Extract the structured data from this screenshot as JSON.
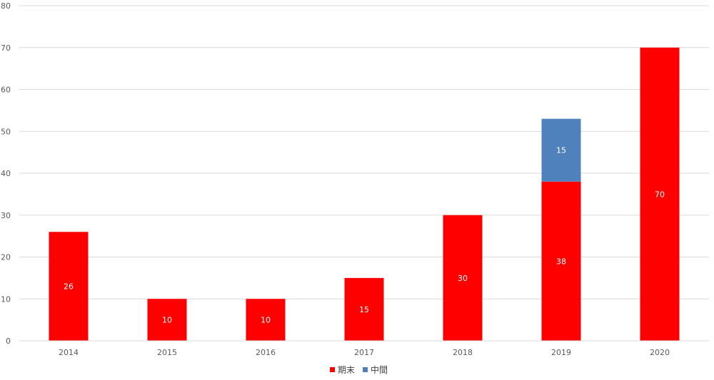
{
  "chart_data": {
    "type": "bar",
    "stacked": true,
    "categories": [
      "2014",
      "2015",
      "2016",
      "2017",
      "2018",
      "2019",
      "2020"
    ],
    "series": [
      {
        "name": "期末",
        "color": "#ff0000",
        "values": [
          26,
          10,
          10,
          15,
          30,
          38,
          70
        ]
      },
      {
        "name": "中間",
        "color": "#4f81bd",
        "values": [
          0,
          0,
          0,
          0,
          0,
          15,
          0
        ]
      }
    ],
    "ylim": [
      0,
      80
    ],
    "yticks": [
      0,
      10,
      20,
      30,
      40,
      50,
      60,
      70,
      80
    ],
    "grid": true,
    "legend": "bottom"
  }
}
